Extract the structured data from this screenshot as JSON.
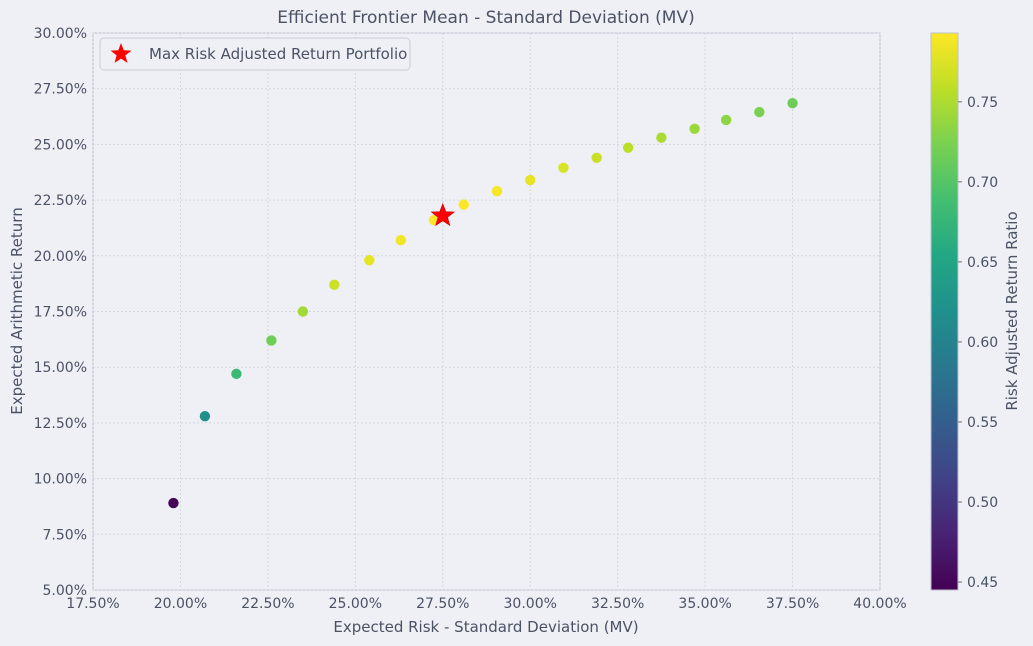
{
  "chart_data": {
    "type": "scatter",
    "title": "Efficient Frontier Mean - Standard Deviation (MV)",
    "xlabel": "Expected Risk - Standard Deviation (MV)",
    "ylabel": "Expected Arithmetic Return",
    "xlim": [
      17.5,
      40.0
    ],
    "ylim": [
      5.0,
      30.0
    ],
    "x_ticks": [
      17.5,
      20.0,
      22.5,
      25.0,
      27.5,
      30.0,
      32.5,
      35.0,
      37.5,
      40.0
    ],
    "x_tick_labels": [
      "17.50%",
      "20.00%",
      "22.50%",
      "25.00%",
      "27.50%",
      "30.00%",
      "32.50%",
      "35.00%",
      "37.50%",
      "40.00%"
    ],
    "y_ticks": [
      5.0,
      7.5,
      10.0,
      12.5,
      15.0,
      17.5,
      20.0,
      22.5,
      25.0,
      27.5,
      30.0
    ],
    "y_tick_labels": [
      "5.00%",
      "7.50%",
      "10.00%",
      "12.50%",
      "15.00%",
      "17.50%",
      "20.00%",
      "22.50%",
      "25.00%",
      "27.50%",
      "30.00%"
    ],
    "grid": true,
    "points": [
      {
        "x": 19.8,
        "y": 8.9,
        "ratio": 0.449
      },
      {
        "x": 20.7,
        "y": 12.8,
        "ratio": 0.618
      },
      {
        "x": 21.6,
        "y": 14.7,
        "ratio": 0.68
      },
      {
        "x": 22.6,
        "y": 16.2,
        "ratio": 0.717
      },
      {
        "x": 23.5,
        "y": 17.5,
        "ratio": 0.745
      },
      {
        "x": 24.4,
        "y": 18.7,
        "ratio": 0.766
      },
      {
        "x": 25.4,
        "y": 19.8,
        "ratio": 0.78
      },
      {
        "x": 26.3,
        "y": 20.7,
        "ratio": 0.787
      },
      {
        "x": 27.25,
        "y": 21.6,
        "ratio": 0.792
      },
      {
        "x": 28.1,
        "y": 22.3,
        "ratio": 0.792
      },
      {
        "x": 29.05,
        "y": 22.9,
        "ratio": 0.789
      },
      {
        "x": 30.0,
        "y": 23.4,
        "ratio": 0.781
      },
      {
        "x": 30.95,
        "y": 23.95,
        "ratio": 0.774
      },
      {
        "x": 31.9,
        "y": 24.4,
        "ratio": 0.765
      },
      {
        "x": 32.8,
        "y": 24.85,
        "ratio": 0.757
      },
      {
        "x": 33.75,
        "y": 25.3,
        "ratio": 0.749
      },
      {
        "x": 34.7,
        "y": 25.7,
        "ratio": 0.741
      },
      {
        "x": 35.6,
        "y": 26.1,
        "ratio": 0.733
      },
      {
        "x": 36.55,
        "y": 26.45,
        "ratio": 0.724
      },
      {
        "x": 37.5,
        "y": 26.85,
        "ratio": 0.716
      }
    ],
    "max_point": {
      "x": 27.5,
      "y": 21.8,
      "label": "Max Risk Adjusted Return Portfolio",
      "color": "#ff0000"
    },
    "legend": {
      "placement": "top-left",
      "entries": [
        "Max Risk Adjusted Return Portfolio"
      ]
    },
    "colorbar": {
      "label": "Risk Adjusted Return Ratio",
      "colormap": "viridis",
      "min": 0.445,
      "max": 0.793,
      "ticks": [
        0.45,
        0.5,
        0.55,
        0.6,
        0.65,
        0.7,
        0.75
      ],
      "tick_labels": [
        "0.45",
        "0.50",
        "0.55",
        "0.60",
        "0.65",
        "0.70",
        "0.75"
      ]
    }
  },
  "colors": {
    "background": "#eef0f5",
    "plot_background": "#eef0f5",
    "grid": "#d2d6df",
    "axis": "#bcc1cc",
    "text": "#4b5264"
  }
}
